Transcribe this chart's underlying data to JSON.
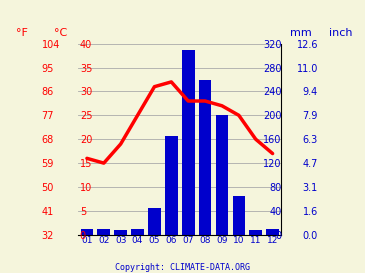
{
  "months": [
    "01",
    "02",
    "03",
    "04",
    "05",
    "06",
    "07",
    "08",
    "09",
    "10",
    "11",
    "12"
  ],
  "temp_c": [
    16,
    15,
    19,
    25,
    31,
    32,
    28,
    28,
    27,
    25,
    20,
    17
  ],
  "precip_mm": [
    10,
    10,
    8,
    10,
    45,
    165,
    310,
    260,
    200,
    65,
    8,
    10
  ],
  "temp_color": "#ff0000",
  "bar_color": "#0000cc",
  "left_label_c": [
    0,
    5,
    10,
    15,
    20,
    25,
    30,
    35,
    40
  ],
  "left_label_f": [
    32,
    41,
    50,
    59,
    68,
    77,
    86,
    95,
    104
  ],
  "right_label_mm": [
    0,
    40,
    80,
    120,
    160,
    200,
    240,
    280,
    320
  ],
  "right_label_inch": [
    "0.0",
    "1.6",
    "3.1",
    "4.7",
    "6.3",
    "7.9",
    "9.4",
    "11.0",
    "12.6"
  ],
  "ylim_temp": [
    0,
    40
  ],
  "ylim_precip": [
    0,
    320
  ],
  "grid_color": "#aaaaaa",
  "axis_color": "#0000cc",
  "temp_axis_color": "#ff0000",
  "bg_color": "#f5f5dc",
  "copyright": "Copyright: CLIMATE-DATA.ORG",
  "title_left_f": "°F",
  "title_left_c": "°C",
  "title_right_mm": "mm",
  "title_right_inch": "inch"
}
